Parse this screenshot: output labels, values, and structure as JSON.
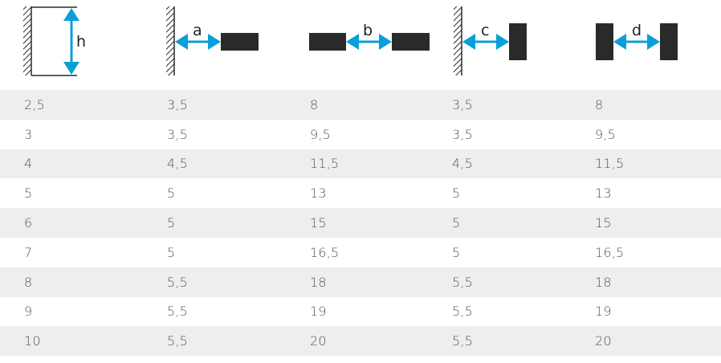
{
  "headers": {
    "h": "h",
    "a": "a",
    "b": "b",
    "c": "c",
    "d": "d"
  },
  "colors": {
    "arrow": "#0a9fd8",
    "block": "#2a2a2a",
    "shaded_row": "#eeeeee",
    "text": "#555555"
  },
  "rows": [
    [
      "2,5",
      "3,5",
      "8",
      "3,5",
      "8"
    ],
    [
      "3",
      "3,5",
      "9,5",
      "3,5",
      "9,5"
    ],
    [
      "4",
      "4,5",
      "11,5",
      "4,5",
      "11,5"
    ],
    [
      "5",
      "5",
      "13",
      "5",
      "13"
    ],
    [
      "6",
      "5",
      "15",
      "5",
      "15"
    ],
    [
      "7",
      "5",
      "16,5",
      "5",
      "16,5"
    ],
    [
      "8",
      "5,5",
      "18",
      "5,5",
      "18"
    ],
    [
      "9",
      "5,5",
      "19",
      "5,5",
      "19"
    ],
    [
      "10",
      "5,5",
      "20",
      "5,5",
      "20"
    ]
  ]
}
